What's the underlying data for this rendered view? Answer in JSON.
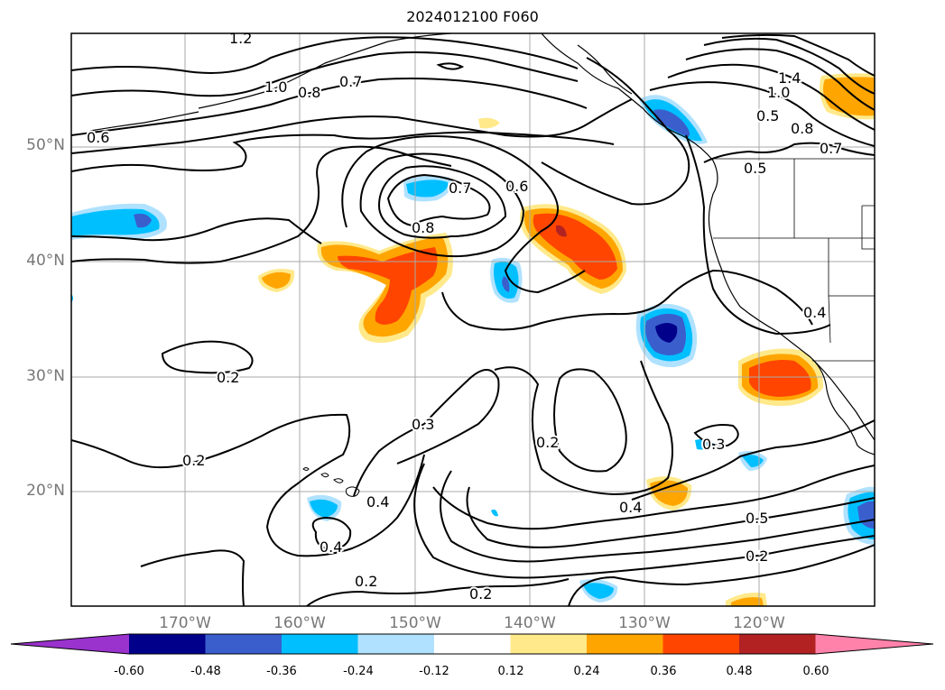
{
  "title": "2024012100 F060",
  "latitude_labels": [
    "50°N",
    "40°N",
    "30°N",
    "20°N"
  ],
  "longitude_labels": [
    "170°W",
    "160°W",
    "150°W",
    "140°W",
    "130°W",
    "120°W"
  ],
  "colorbar": {
    "ticks": [
      "-0.60",
      "-0.48",
      "-0.36",
      "-0.24",
      "-0.12",
      "0.12",
      "0.24",
      "0.36",
      "0.48",
      "0.60"
    ],
    "colors": [
      "#9a32cd",
      "#00008b",
      "#3a5fcd",
      "#00bfff",
      "#b0e2ff",
      "#ffffff",
      "#ffe98a",
      "#ffa500",
      "#ff4500",
      "#b22222",
      "#ff82ab"
    ]
  },
  "contour_labels": [
    "1.2",
    "1.0",
    "0.8",
    "0.7",
    "0.6",
    "0.7",
    "0.8",
    "0.6",
    "1.4",
    "1.0",
    "0.5",
    "0.8",
    "0.7",
    "0.5",
    "0.4",
    "0.2",
    "0.3",
    "0.2",
    "0.2",
    "0.4",
    "0.3",
    "0.4",
    "0.5",
    "0.4",
    "0.2",
    "0.2",
    "0.2"
  ],
  "map_features": [
    "coastline-north-america",
    "state-borders",
    "hawaii-islands",
    "aleutian-islands"
  ]
}
